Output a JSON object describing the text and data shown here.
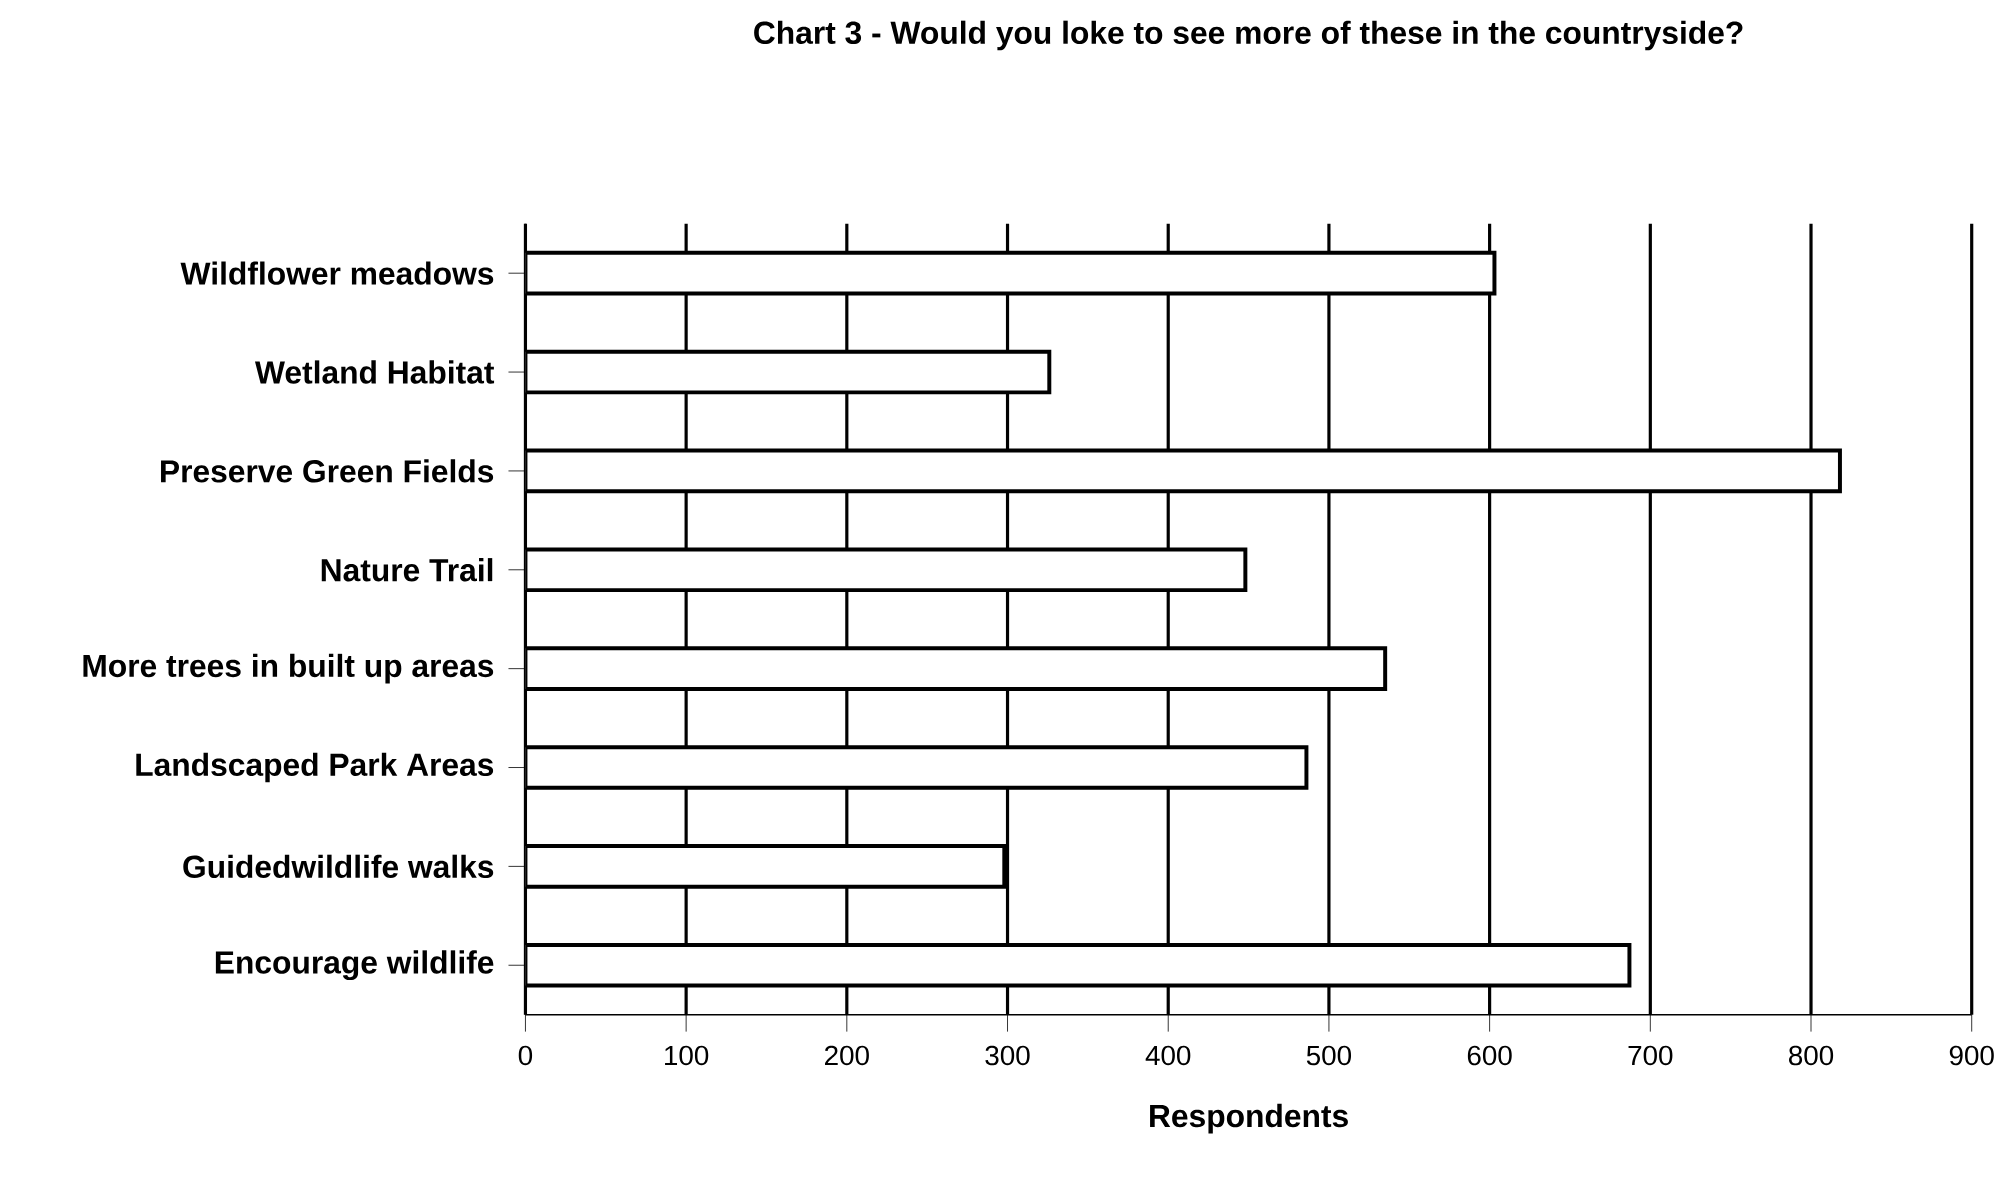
{
  "chart_data": {
    "type": "bar",
    "orientation": "horizontal",
    "title": "Chart 3  - Would you loke to see more of these in the countryside?",
    "xlabel": "Respondents",
    "categories": [
      "Wildflower meadows",
      "Wetland Habitat",
      "Preserve Green Fields",
      "Nature Trail",
      "More trees in built up areas",
      "Landscaped Park Areas",
      "Guidedwildlife walks",
      "Encourage wildlife"
    ],
    "values": [
      603,
      326,
      818,
      448,
      535,
      486,
      298,
      687
    ],
    "color": "#ffffff",
    "xlim": [
      0,
      900
    ],
    "xticks": [
      0,
      100,
      200,
      300,
      400,
      500,
      600,
      700,
      800,
      900
    ],
    "grid": "x"
  }
}
